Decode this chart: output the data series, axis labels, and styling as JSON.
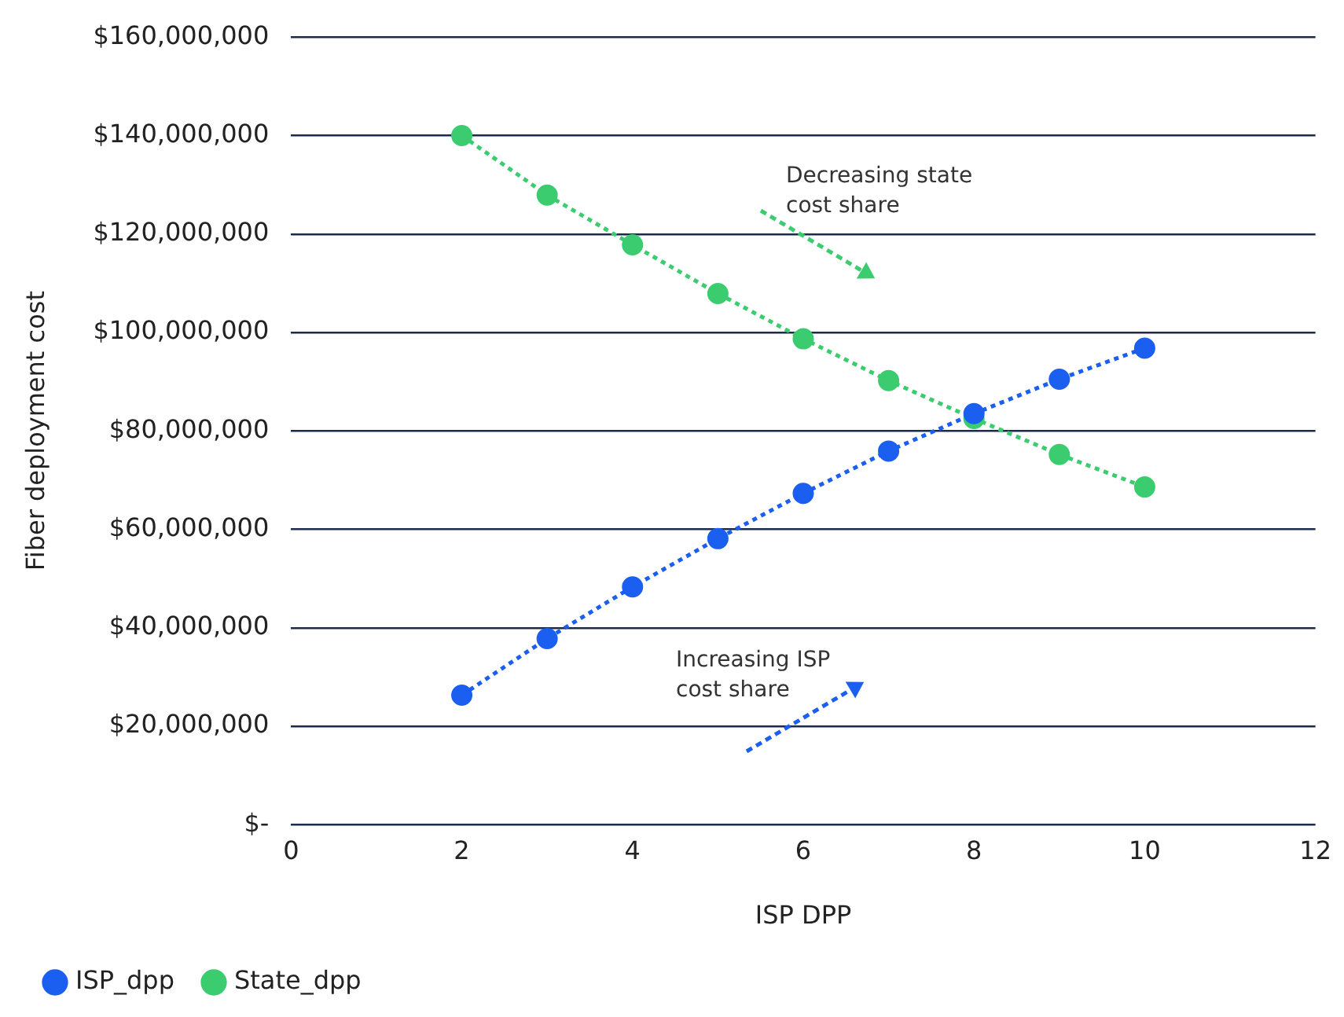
{
  "chart_data": {
    "type": "line",
    "xlabel": "ISP DPP",
    "ylabel": "Fiber deployment cost",
    "x": [
      2,
      3,
      4,
      5,
      6,
      7,
      8,
      9,
      10
    ],
    "series": [
      {
        "name": "ISP_dpp",
        "color": "#1a5ff0",
        "values": [
          26300000,
          37800000,
          48300000,
          58100000,
          67300000,
          75900000,
          83500000,
          90500000,
          96800000
        ]
      },
      {
        "name": "State_dpp",
        "color": "#3ccc70",
        "values": [
          140000000,
          127900000,
          117800000,
          107900000,
          98700000,
          90200000,
          82500000,
          75200000,
          68600000
        ]
      }
    ],
    "xlim": [
      0,
      12
    ],
    "xticks": [
      0,
      2,
      4,
      6,
      8,
      10,
      12
    ],
    "ylim": [
      0,
      160000000
    ],
    "yticks": [
      {
        "value": 0,
        "label": "$-"
      },
      {
        "value": 20000000,
        "label": "$20,000,000"
      },
      {
        "value": 40000000,
        "label": "$40,000,000"
      },
      {
        "value": 60000000,
        "label": "$60,000,000"
      },
      {
        "value": 80000000,
        "label": "$80,000,000"
      },
      {
        "value": 100000000,
        "label": "$100,000,000"
      },
      {
        "value": 120000000,
        "label": "$120,000,000"
      },
      {
        "value": 140000000,
        "label": "$140,000,000"
      },
      {
        "value": 160000000,
        "label": "$160,000,000"
      }
    ],
    "annotations": [
      "Decreasing state cost share",
      "Increasing ISP cost share"
    ],
    "grid": "y",
    "legend": "bottom",
    "marker": "circle",
    "line_style": "dotted"
  }
}
